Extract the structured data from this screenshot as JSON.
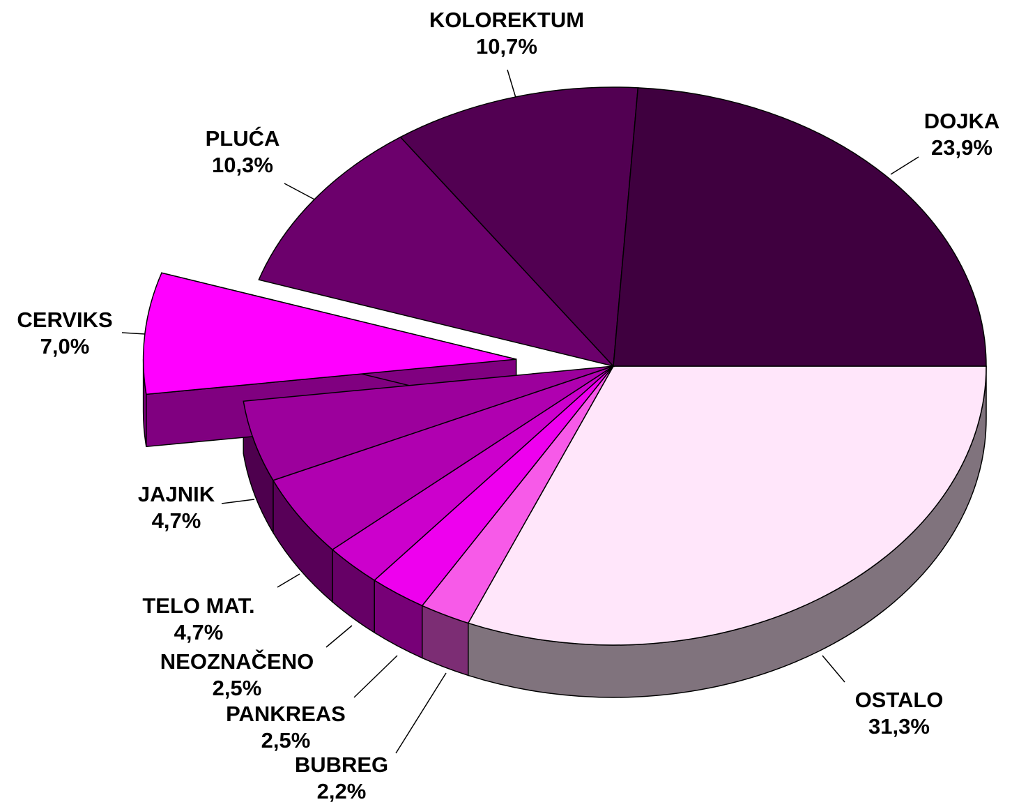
{
  "chart_data": {
    "type": "pie",
    "categories": [
      "OSTALO",
      "BUBREG",
      "PANKREAS",
      "NEOZNAČENO",
      "TELO MAT.",
      "JAJNIK",
      "CERVIKS",
      "PLUĆA",
      "KOLOREKTUM",
      "DOJKA"
    ],
    "values": [
      31.3,
      2.2,
      2.5,
      2.5,
      4.7,
      4.7,
      7.0,
      10.3,
      10.7,
      23.9
    ],
    "value_labels": [
      "31,3%",
      "2,2%",
      "2,5%",
      "2,5%",
      "4,7%",
      "4,7%",
      "7,0%",
      "10,3%",
      "10,7%",
      "23,9%"
    ],
    "colors": [
      "#ffe6fa",
      "#f75ae8",
      "#ee00ee",
      "#cc00cc",
      "#b000b0",
      "#9c009c",
      "#ff00ff",
      "#6c006c",
      "#520052",
      "#3f003f"
    ]
  }
}
